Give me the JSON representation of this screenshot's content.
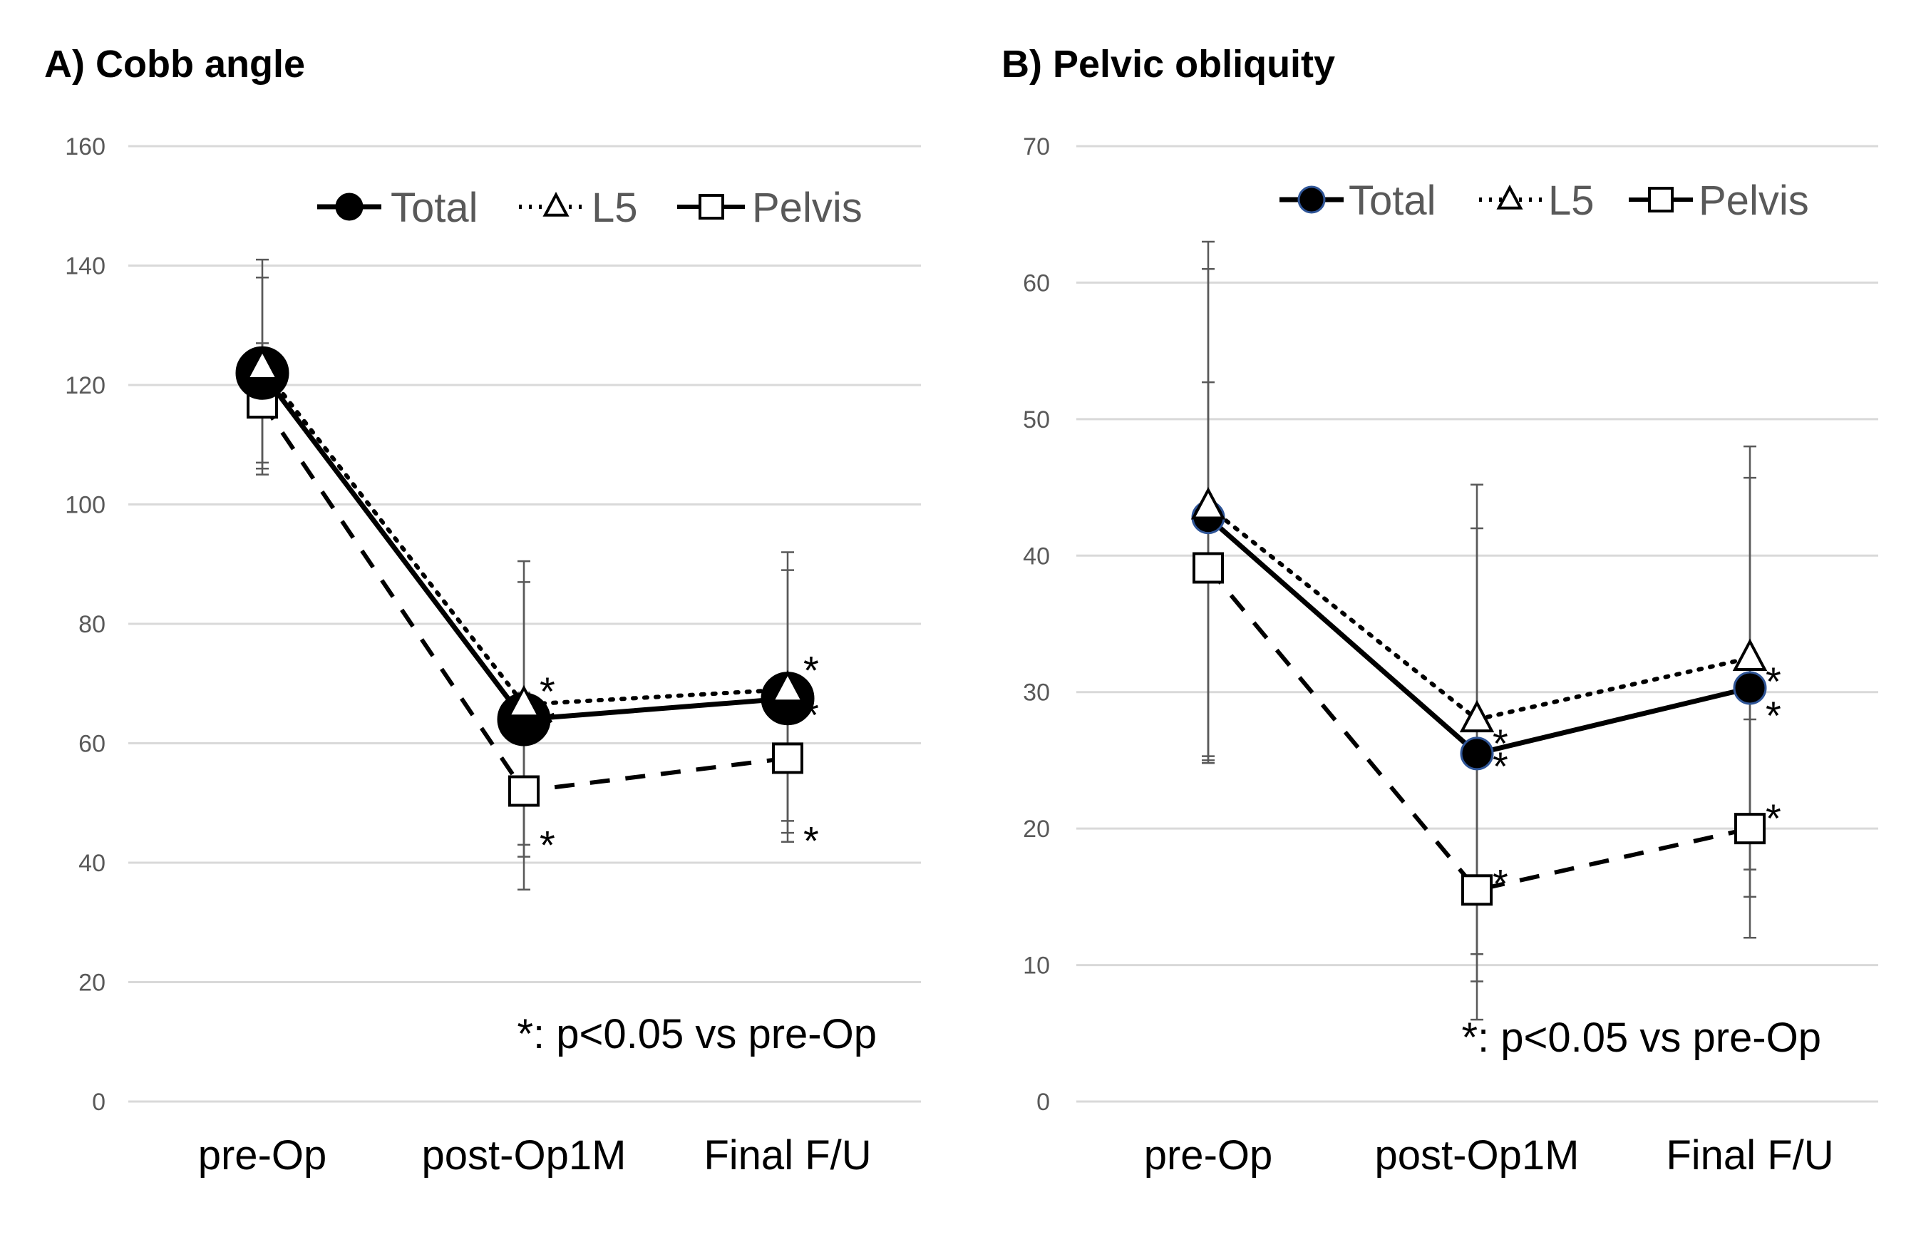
{
  "chart_data": [
    {
      "type": "line",
      "title": "A) Cobb angle",
      "categories": [
        "pre-Op",
        "post-Op1M",
        "Final F/U"
      ],
      "ylim": [
        0,
        160
      ],
      "yticks": [
        "0",
        "20",
        "40",
        "60",
        "80",
        "100",
        "120",
        "140",
        "160"
      ],
      "grid": true,
      "legend_position": "top-right",
      "series": [
        {
          "name": "Total",
          "marker": "circle",
          "line": "solid",
          "values": [
            122,
            64,
            67.5
          ],
          "err_low": [
            106,
            41,
            47
          ],
          "err_high": [
            138,
            87,
            89
          ]
        },
        {
          "name": "L5",
          "marker": "triangle",
          "line": "dotted",
          "values": [
            123,
            66.5,
            69
          ],
          "err_low": [
            105,
            43,
            45
          ],
          "err_high": [
            141,
            90.5,
            92
          ]
        },
        {
          "name": "Pelvis",
          "marker": "square",
          "line": "dashed",
          "values": [
            117,
            52,
            57.5
          ],
          "err_low": [
            107,
            35.5,
            43.5
          ],
          "err_high": [
            127,
            68.5,
            71.5
          ]
        }
      ],
      "significance": [
        {
          "series": "L5",
          "category": "post-Op1M",
          "text": "*"
        },
        {
          "series": "Total",
          "category": "post-Op1M",
          "text": "*"
        },
        {
          "series": "Pelvis",
          "category": "post-Op1M",
          "text": "*"
        },
        {
          "series": "L5",
          "category": "Final F/U",
          "text": "*"
        },
        {
          "series": "Total",
          "category": "Final F/U",
          "text": "*"
        },
        {
          "series": "Pelvis",
          "category": "Final F/U",
          "text": "*"
        }
      ],
      "annotation": "*: p<0.05 vs pre-Op"
    },
    {
      "type": "line",
      "title": "B) Pelvic obliquity",
      "categories": [
        "pre-Op",
        "post-Op1M",
        "Final F/U"
      ],
      "ylim": [
        0,
        70
      ],
      "yticks": [
        "0",
        "10",
        "20",
        "30",
        "40",
        "50",
        "60",
        "70"
      ],
      "grid": true,
      "legend_position": "top-right",
      "series": [
        {
          "name": "Total",
          "marker": "circle",
          "line": "solid",
          "values": [
            42.8,
            25.5,
            30.3
          ],
          "err_low": [
            25,
            8.8,
            15
          ],
          "err_high": [
            61,
            42,
            45.7
          ]
        },
        {
          "name": "L5",
          "marker": "triangle",
          "line": "dotted",
          "values": [
            43.6,
            28,
            32.5
          ],
          "err_low": [
            25.3,
            10.8,
            17
          ],
          "err_high": [
            63,
            45.2,
            48
          ]
        },
        {
          "name": "Pelvis",
          "marker": "square",
          "line": "dashed",
          "values": [
            39.1,
            15.5,
            20
          ],
          "err_low": [
            24.8,
            6,
            12
          ],
          "err_high": [
            52.7,
            25,
            28
          ]
        }
      ],
      "significance": [
        {
          "series": "L5",
          "category": "post-Op1M",
          "text": "*"
        },
        {
          "series": "Total",
          "category": "post-Op1M",
          "text": "*"
        },
        {
          "series": "Pelvis",
          "category": "post-Op1M",
          "text": "*"
        },
        {
          "series": "L5",
          "category": "Final F/U",
          "text": "*"
        },
        {
          "series": "Total",
          "category": "Final F/U",
          "text": "*"
        },
        {
          "series": "Pelvis",
          "category": "Final F/U",
          "text": "*"
        }
      ],
      "annotation": "*: p<0.05 vs pre-Op"
    }
  ]
}
